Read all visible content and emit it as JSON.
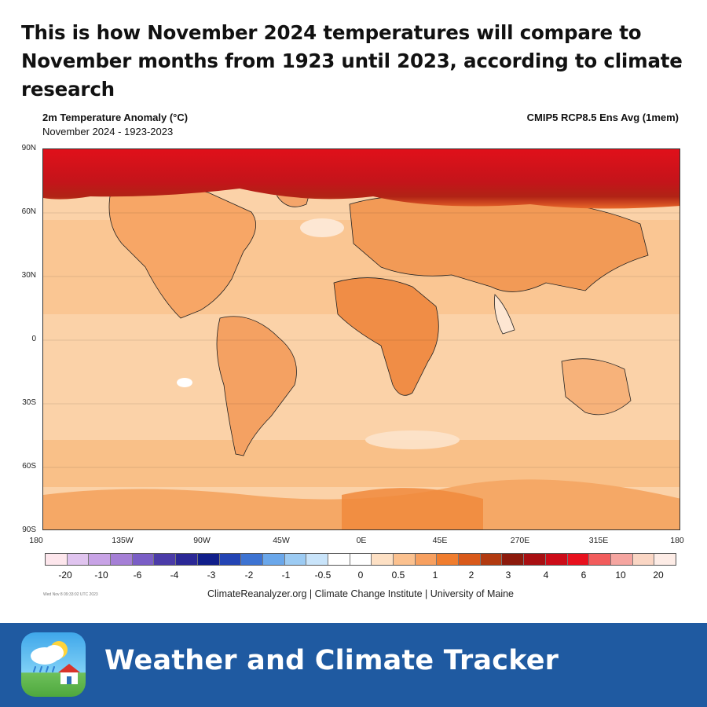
{
  "headline": "This is how November 2024 temperatures will compare to November months from 1923 until 2023, according to climate research",
  "map": {
    "title": "2m Temperature Anomaly (°C)",
    "subtitle": "November 2024 - 1923-2023",
    "model": "CMIP5 RCP8.5 Ens Avg (1mem)",
    "lat_ticks": [
      "90N",
      "60N",
      "30N",
      "0",
      "30S",
      "60S",
      "90S"
    ],
    "lon_ticks": [
      "180",
      "135W",
      "90W",
      "45W",
      "0E",
      "45E",
      "270E",
      "315E",
      "180"
    ],
    "timestamp": "Wed Nov  8 09:33:02 UTC 2023",
    "credits": "ClimateReanalyzer.org | Climate Change Institute | University of Maine"
  },
  "legend": {
    "unit": "°C",
    "colors": [
      "#fde6ec",
      "#e0c4ef",
      "#c8a3e6",
      "#a57fd6",
      "#7a5ec6",
      "#4b3ba8",
      "#2b2896",
      "#101e8a",
      "#2344b4",
      "#3d73d2",
      "#6aa7ea",
      "#9ccbf3",
      "#c9e4fa",
      "#ffffff",
      "#ffffff",
      "#fde0c4",
      "#fbc18f",
      "#f7a060",
      "#f07d2e",
      "#d9591a",
      "#b23a10",
      "#8c1a0c",
      "#a80f12",
      "#cc0c18",
      "#e8101d",
      "#f25c5c",
      "#f5a5a0",
      "#fad6c4",
      "#fdece6"
    ],
    "labels": [
      "-20",
      "-10",
      "-6",
      "-4",
      "-3",
      "-2",
      "-1",
      "-0.5",
      "0",
      "0.5",
      "1",
      "2",
      "3",
      "4",
      "6",
      "10",
      "20"
    ]
  },
  "footer": {
    "app_name": "Weather and Climate Tracker",
    "icon": "weather-house-icon"
  }
}
